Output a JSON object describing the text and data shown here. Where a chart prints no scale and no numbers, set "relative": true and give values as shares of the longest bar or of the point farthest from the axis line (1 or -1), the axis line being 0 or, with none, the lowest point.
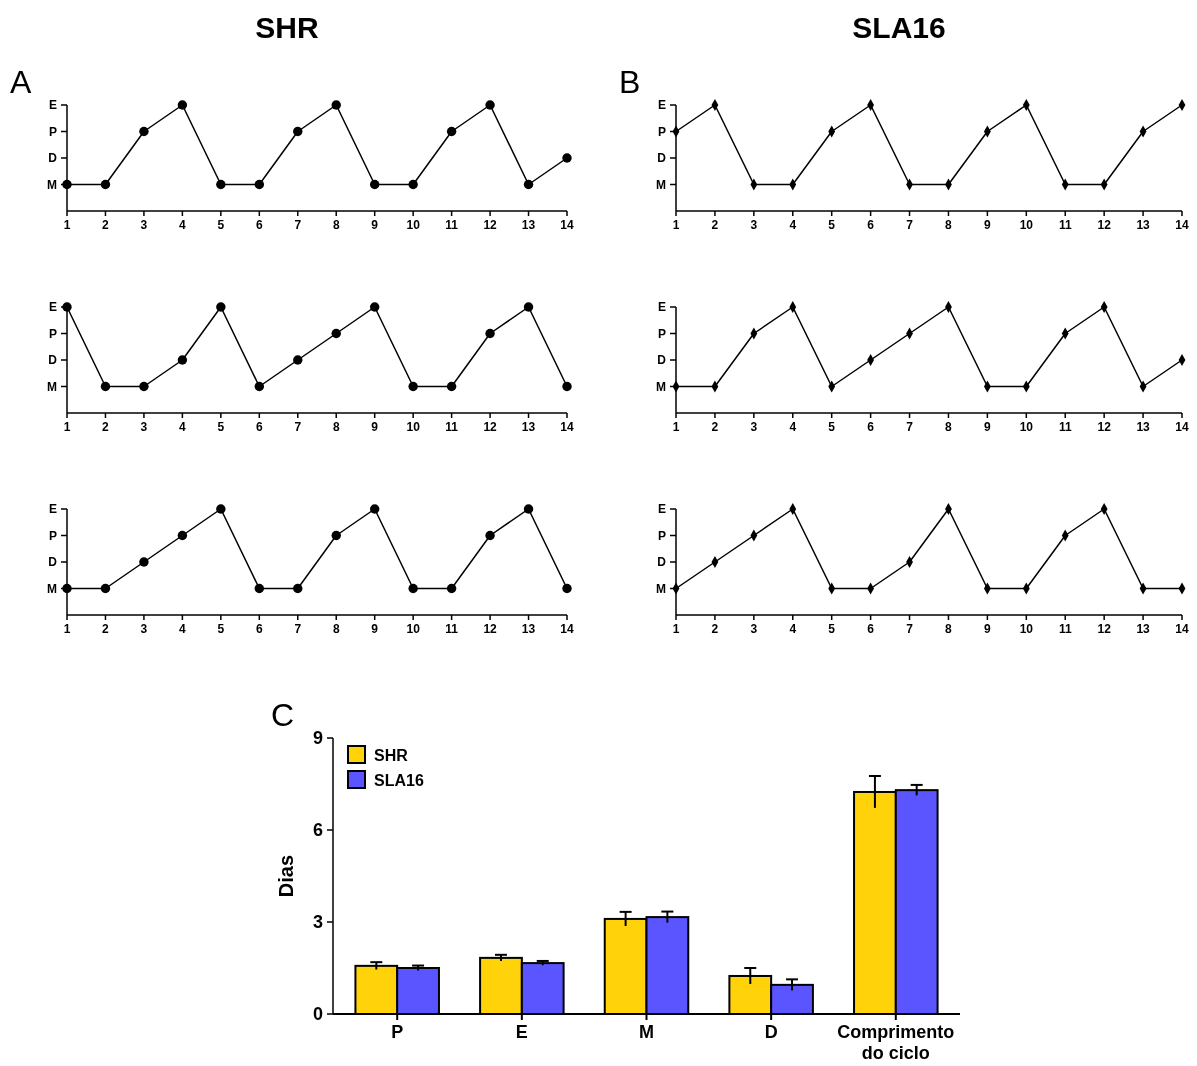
{
  "chart_data": [
    {
      "type": "line",
      "title": "SHR",
      "annotations": [
        "M",
        "D",
        "P",
        "E",
        "A"
      ],
      "marker": "circle",
      "relative": true,
      "x": [
        1,
        2,
        3,
        4,
        5,
        6,
        7,
        8,
        9,
        10,
        11,
        12,
        13,
        14
      ],
      "xlim": [
        1,
        14
      ],
      "xticks": [
        1,
        2,
        3,
        4,
        5,
        6,
        7,
        8,
        9,
        10,
        11,
        12,
        13,
        14
      ],
      "series": [
        {
          "color": "#000000",
          "values": [
            0.25,
            0.25,
            0.75,
            1,
            0.25,
            0.25,
            0.75,
            1,
            0.25,
            0.25,
            0.75,
            1,
            0.25,
            0.5
          ]
        }
      ]
    },
    {
      "type": "line",
      "title": "SLA16",
      "annotations": [
        "M",
        "D",
        "P",
        "E",
        "B"
      ],
      "marker": "diamond",
      "relative": true,
      "x": [
        1,
        2,
        3,
        4,
        5,
        6,
        7,
        8,
        9,
        10,
        11,
        12,
        13,
        14
      ],
      "xlim": [
        1,
        14
      ],
      "xticks": [
        1,
        2,
        3,
        4,
        5,
        6,
        7,
        8,
        9,
        10,
        11,
        12,
        13,
        14
      ],
      "series": [
        {
          "color": "#000000",
          "values": [
            0.75,
            1,
            0.25,
            0.25,
            0.75,
            1,
            0.25,
            0.25,
            0.75,
            1,
            0.25,
            0.25,
            0.75,
            1
          ]
        }
      ]
    },
    {
      "type": "line",
      "annotations": [
        "M",
        "D",
        "P",
        "E"
      ],
      "marker": "circle",
      "relative": true,
      "x": [
        1,
        2,
        3,
        4,
        5,
        6,
        7,
        8,
        9,
        10,
        11,
        12,
        13,
        14
      ],
      "xlim": [
        1,
        14
      ],
      "xticks": [
        1,
        2,
        3,
        4,
        5,
        6,
        7,
        8,
        9,
        10,
        11,
        12,
        13,
        14
      ],
      "series": [
        {
          "color": "#000000",
          "values": [
            1,
            0.25,
            0.25,
            0.5,
            1,
            0.25,
            0.5,
            0.75,
            1,
            0.25,
            0.25,
            0.75,
            1,
            0.25
          ]
        }
      ]
    },
    {
      "type": "line",
      "annotations": [
        "M",
        "D",
        "P",
        "E"
      ],
      "marker": "diamond",
      "relative": true,
      "x": [
        1,
        2,
        3,
        4,
        5,
        6,
        7,
        8,
        9,
        10,
        11,
        12,
        13,
        14
      ],
      "xlim": [
        1,
        14
      ],
      "xticks": [
        1,
        2,
        3,
        4,
        5,
        6,
        7,
        8,
        9,
        10,
        11,
        12,
        13,
        14
      ],
      "series": [
        {
          "color": "#000000",
          "values": [
            0.25,
            0.25,
            0.75,
            1,
            0.25,
            0.5,
            0.75,
            1,
            0.25,
            0.25,
            0.75,
            1,
            0.25,
            0.5
          ]
        }
      ]
    },
    {
      "type": "line",
      "annotations": [
        "M",
        "D",
        "P",
        "E"
      ],
      "marker": "circle",
      "relative": true,
      "x": [
        1,
        2,
        3,
        4,
        5,
        6,
        7,
        8,
        9,
        10,
        11,
        12,
        13,
        14
      ],
      "xlim": [
        1,
        14
      ],
      "xticks": [
        1,
        2,
        3,
        4,
        5,
        6,
        7,
        8,
        9,
        10,
        11,
        12,
        13,
        14
      ],
      "series": [
        {
          "color": "#000000",
          "values": [
            0.25,
            0.25,
            0.5,
            0.75,
            1,
            0.25,
            0.25,
            0.75,
            1,
            0.25,
            0.25,
            0.75,
            1,
            0.25
          ]
        }
      ]
    },
    {
      "type": "line",
      "annotations": [
        "M",
        "D",
        "P",
        "E"
      ],
      "marker": "diamond",
      "relative": true,
      "x": [
        1,
        2,
        3,
        4,
        5,
        6,
        7,
        8,
        9,
        10,
        11,
        12,
        13,
        14
      ],
      "xlim": [
        1,
        14
      ],
      "xticks": [
        1,
        2,
        3,
        4,
        5,
        6,
        7,
        8,
        9,
        10,
        11,
        12,
        13,
        14
      ],
      "series": [
        {
          "color": "#000000",
          "values": [
            0.25,
            0.5,
            0.75,
            1,
            0.25,
            0.25,
            0.5,
            1,
            0.25,
            0.25,
            0.75,
            1,
            0.25,
            0.25
          ]
        }
      ]
    },
    {
      "type": "bar",
      "annotations": [
        "C"
      ],
      "ylabel": "Dias",
      "categories": [
        "P",
        "E",
        "M",
        "D",
        "Comprimento do ciclo"
      ],
      "ylim": [
        0,
        9
      ],
      "yticks": [
        0,
        3,
        6,
        9
      ],
      "legend": "top left",
      "series": [
        {
          "name": "SHR",
          "color": "#ffd20a",
          "values": [
            1.57,
            1.83,
            3.1,
            1.24,
            7.24
          ],
          "errors": [
            0.12,
            0.1,
            0.23,
            0.26,
            0.52
          ]
        },
        {
          "name": "SLA16",
          "color": "#5a55ff",
          "values": [
            1.5,
            1.66,
            3.16,
            0.95,
            7.3
          ],
          "errors": [
            0.08,
            0.07,
            0.18,
            0.18,
            0.17
          ]
        }
      ]
    }
  ]
}
